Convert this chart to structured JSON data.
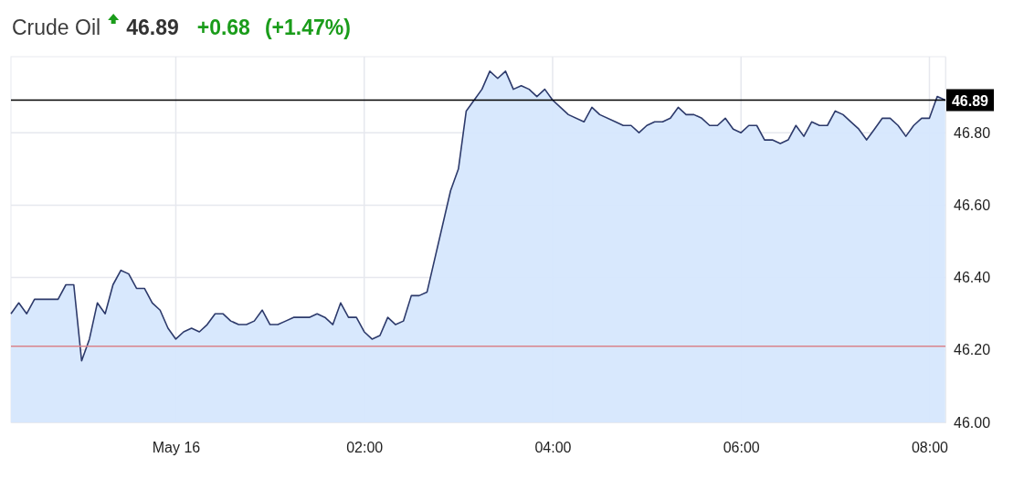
{
  "chart_data": {
    "type": "area",
    "title": "Crude Oil",
    "annotations": [
      "46.89",
      "+0.68",
      "(+1.47%)"
    ],
    "series": [
      {
        "color": "#2d3a6b",
        "x": [
          -1.75,
          -1.667,
          -1.583,
          -1.5,
          -1.25,
          -1.167,
          -1.083,
          -1.0,
          -0.917,
          -0.833,
          -0.75,
          -0.667,
          -0.583,
          -0.5,
          -0.417,
          -0.333,
          -0.25,
          -0.167,
          -0.083,
          0,
          0.083,
          0.167,
          0.25,
          0.333,
          0.417,
          0.5,
          0.583,
          0.667,
          0.75,
          0.833,
          0.917,
          1.0,
          1.083,
          1.167,
          1.25,
          1.417,
          1.5,
          1.583,
          1.667,
          1.75,
          1.833,
          1.917,
          2.0,
          2.083,
          2.167,
          2.25,
          2.333,
          2.417,
          2.5,
          2.583,
          2.667,
          2.917,
          3.0,
          3.083,
          3.167,
          3.25,
          3.333,
          3.417,
          3.5,
          3.583,
          3.667,
          3.75,
          3.833,
          3.917,
          4.0,
          4.083,
          4.167,
          4.333,
          4.417,
          4.5,
          4.667,
          4.75,
          4.833,
          4.917,
          5.0,
          5.083,
          5.167,
          5.25,
          5.333,
          5.417,
          5.5,
          5.583,
          5.667,
          5.75,
          5.833,
          5.917,
          6.0,
          6.083,
          6.167,
          6.25,
          6.333,
          6.417,
          6.5,
          6.583,
          6.667,
          6.75,
          6.833,
          6.917,
          7.0,
          7.083,
          7.167,
          7.25,
          7.333,
          7.417,
          7.5,
          7.583,
          7.667,
          7.75,
          7.833,
          7.917,
          8.0,
          8.083,
          8.167
        ],
        "values": [
          46.3,
          46.33,
          46.3,
          46.34,
          46.34,
          46.38,
          46.38,
          46.17,
          46.23,
          46.33,
          46.3,
          46.38,
          46.42,
          46.41,
          46.37,
          46.37,
          46.33,
          46.31,
          46.26,
          46.23,
          46.25,
          46.26,
          46.25,
          46.27,
          46.3,
          46.3,
          46.28,
          46.27,
          46.27,
          46.28,
          46.31,
          46.27,
          46.27,
          46.28,
          46.29,
          46.29,
          46.3,
          46.29,
          46.27,
          46.33,
          46.29,
          46.29,
          46.25,
          46.23,
          46.24,
          46.29,
          46.27,
          46.28,
          46.35,
          46.35,
          46.36,
          46.64,
          46.7,
          46.86,
          46.89,
          46.92,
          46.97,
          46.95,
          46.97,
          46.92,
          46.93,
          46.92,
          46.9,
          46.92,
          46.89,
          46.87,
          46.85,
          46.83,
          46.87,
          46.85,
          46.83,
          46.82,
          46.82,
          46.8,
          46.82,
          46.83,
          46.83,
          46.84,
          46.87,
          46.85,
          46.85,
          46.84,
          46.82,
          46.82,
          46.84,
          46.81,
          46.8,
          46.82,
          46.82,
          46.78,
          46.78,
          46.77,
          46.78,
          46.82,
          46.79,
          46.83,
          46.82,
          46.82,
          46.86,
          46.85,
          46.83,
          46.81,
          46.78,
          46.81,
          46.84,
          46.84,
          46.82,
          46.79,
          46.82,
          46.84,
          46.84,
          46.9,
          46.89
        ]
      }
    ],
    "xlim": [
      -1.75,
      8.17
    ],
    "xticks": [
      {
        "value": 0,
        "label": "May 16"
      },
      {
        "value": 2,
        "label": "02:00"
      },
      {
        "value": 4,
        "label": "04:00"
      },
      {
        "value": 6,
        "label": "06:00"
      },
      {
        "value": 8,
        "label": "08:00"
      }
    ],
    "ylim": [
      46,
      47.01
    ],
    "yticks": [
      {
        "value": 46,
        "label": "46.00"
      },
      {
        "value": 46.2,
        "label": "46.20"
      },
      {
        "value": 46.4,
        "label": "46.40"
      },
      {
        "value": 46.6,
        "label": "46.60"
      },
      {
        "value": 46.8,
        "label": "46.80"
      }
    ],
    "ref_lines": [
      {
        "axis": "y",
        "value": 46.89,
        "label": "46.89",
        "color": "#000000"
      },
      {
        "axis": "y",
        "value": 46.21,
        "color": "#d9838c"
      }
    ],
    "grid": true,
    "marker": "none",
    "line_style": "solid"
  }
}
